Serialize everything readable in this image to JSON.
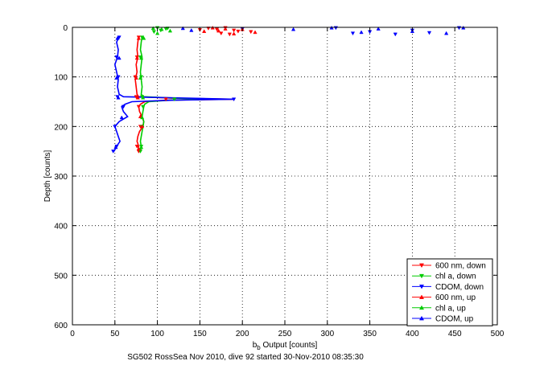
{
  "chart_data": {
    "type": "scatter",
    "xlabel_main": "b",
    "xlabel_sub": "b",
    "xlabel_rest": " Output [counts]",
    "ylabel": "Depth [counts]",
    "caption": "SG502 RossSea Nov 2010, dive 92 started 30-Nov-2010 08:35:30",
    "xlim": [
      0,
      500
    ],
    "ylim": [
      0,
      600
    ],
    "y_reversed": true,
    "grid": true,
    "legend_position": "bottom-right",
    "x_ticks": [
      "0",
      "50",
      "100",
      "150",
      "200",
      "250",
      "300",
      "350",
      "400",
      "450",
      "500"
    ],
    "y_ticks": [
      "0",
      "100",
      "200",
      "300",
      "400",
      "500",
      "600"
    ],
    "series": [
      {
        "name": "600 nm, down",
        "color": "#ff0000",
        "marker": "triangle-down",
        "points": [
          [
            160,
            2
          ],
          [
            170,
            4
          ],
          [
            180,
            1
          ],
          [
            190,
            6
          ],
          [
            200,
            3
          ],
          [
            210,
            9
          ],
          [
            175,
            12
          ],
          [
            195,
            8
          ],
          [
            150,
            5
          ],
          [
            185,
            14
          ],
          [
            78,
            20
          ],
          [
            76,
            60
          ],
          [
            74,
            100
          ],
          [
            75,
            140
          ],
          [
            110,
            145
          ],
          [
            78,
            160
          ],
          [
            80,
            200
          ],
          [
            76,
            240
          ],
          [
            78,
            250
          ]
        ]
      },
      {
        "name": "chl a, down",
        "color": "#00cc00",
        "marker": "triangle-down",
        "points": [
          [
            100,
            1
          ],
          [
            110,
            3
          ],
          [
            104,
            6
          ],
          [
            96,
            9
          ],
          [
            112,
            2
          ],
          [
            82,
            20
          ],
          [
            80,
            60
          ],
          [
            81,
            100
          ],
          [
            82,
            140
          ],
          [
            120,
            145
          ],
          [
            83,
            160
          ],
          [
            82,
            200
          ],
          [
            81,
            240
          ],
          [
            80,
            250
          ]
        ]
      },
      {
        "name": "CDOM, down",
        "color": "#0000ff",
        "marker": "triangle-down",
        "points": [
          [
            200,
            3
          ],
          [
            310,
            1
          ],
          [
            330,
            12
          ],
          [
            350,
            9
          ],
          [
            380,
            14
          ],
          [
            400,
            6
          ],
          [
            420,
            11
          ],
          [
            455,
            1
          ],
          [
            190,
            145
          ],
          [
            55,
            20
          ],
          [
            52,
            60
          ],
          [
            54,
            100
          ],
          [
            53,
            140
          ],
          [
            60,
            160
          ],
          [
            50,
            200
          ],
          [
            52,
            240
          ],
          [
            48,
            250
          ]
        ]
      },
      {
        "name": "600 nm, up",
        "color": "#ff0000",
        "marker": "triangle-up",
        "points": [
          [
            165,
            1
          ],
          [
            172,
            7
          ],
          [
            200,
            4
          ],
          [
            215,
            10
          ],
          [
            190,
            13
          ],
          [
            180,
            3
          ],
          [
            155,
            8
          ],
          [
            78,
            22
          ],
          [
            76,
            62
          ],
          [
            75,
            102
          ],
          [
            77,
            142
          ],
          [
            80,
            180
          ],
          [
            82,
            200
          ],
          [
            78,
            245
          ]
        ]
      },
      {
        "name": "chl a, up",
        "color": "#00cc00",
        "marker": "triangle-up",
        "points": [
          [
            95,
            2
          ],
          [
            105,
            4
          ],
          [
            115,
            7
          ],
          [
            100,
            12
          ],
          [
            84,
            22
          ],
          [
            81,
            62
          ],
          [
            80,
            102
          ],
          [
            83,
            142
          ],
          [
            82,
            182
          ],
          [
            81,
            242
          ]
        ]
      },
      {
        "name": "CDOM, up",
        "color": "#0000ff",
        "marker": "triangle-up",
        "points": [
          [
            130,
            2
          ],
          [
            140,
            6
          ],
          [
            260,
            4
          ],
          [
            305,
            1
          ],
          [
            340,
            10
          ],
          [
            360,
            3
          ],
          [
            400,
            8
          ],
          [
            440,
            12
          ],
          [
            460,
            1
          ],
          [
            53,
            22
          ],
          [
            55,
            62
          ],
          [
            52,
            102
          ],
          [
            54,
            142
          ],
          [
            58,
            182
          ],
          [
            51,
            242
          ]
        ]
      }
    ],
    "profiles": [
      {
        "name": "600 nm",
        "color": "#ff0000",
        "depth": [
          18,
          30,
          45,
          60,
          75,
          90,
          105,
          120,
          135,
          140,
          143,
          145,
          147,
          150,
          155,
          160,
          170,
          180,
          190,
          200,
          210,
          220,
          230,
          240,
          250
        ],
        "value": [
          78,
          77,
          76,
          77,
          75,
          76,
          74,
          75,
          76,
          78,
          120,
          190,
          110,
          85,
          80,
          78,
          79,
          82,
          84,
          83,
          79,
          77,
          76,
          78,
          77
        ]
      },
      {
        "name": "chl a",
        "color": "#00cc00",
        "depth": [
          18,
          30,
          45,
          60,
          75,
          90,
          105,
          120,
          135,
          140,
          143,
          145,
          147,
          150,
          155,
          160,
          170,
          180,
          190,
          200,
          210,
          220,
          230,
          240,
          250
        ],
        "value": [
          82,
          81,
          80,
          82,
          81,
          80,
          81,
          82,
          81,
          84,
          125,
          170,
          115,
          90,
          85,
          84,
          83,
          82,
          84,
          83,
          82,
          81,
          80,
          81,
          80
        ]
      },
      {
        "name": "CDOM",
        "color": "#0000ff",
        "depth": [
          18,
          30,
          45,
          60,
          75,
          90,
          105,
          120,
          135,
          140,
          143,
          145,
          147,
          150,
          155,
          160,
          170,
          180,
          190,
          200,
          210,
          220,
          230,
          240,
          250
        ],
        "value": [
          55,
          52,
          54,
          53,
          50,
          52,
          54,
          53,
          55,
          60,
          140,
          190,
          120,
          70,
          62,
          58,
          60,
          65,
          55,
          50,
          52,
          54,
          56,
          52,
          49
        ]
      }
    ]
  }
}
